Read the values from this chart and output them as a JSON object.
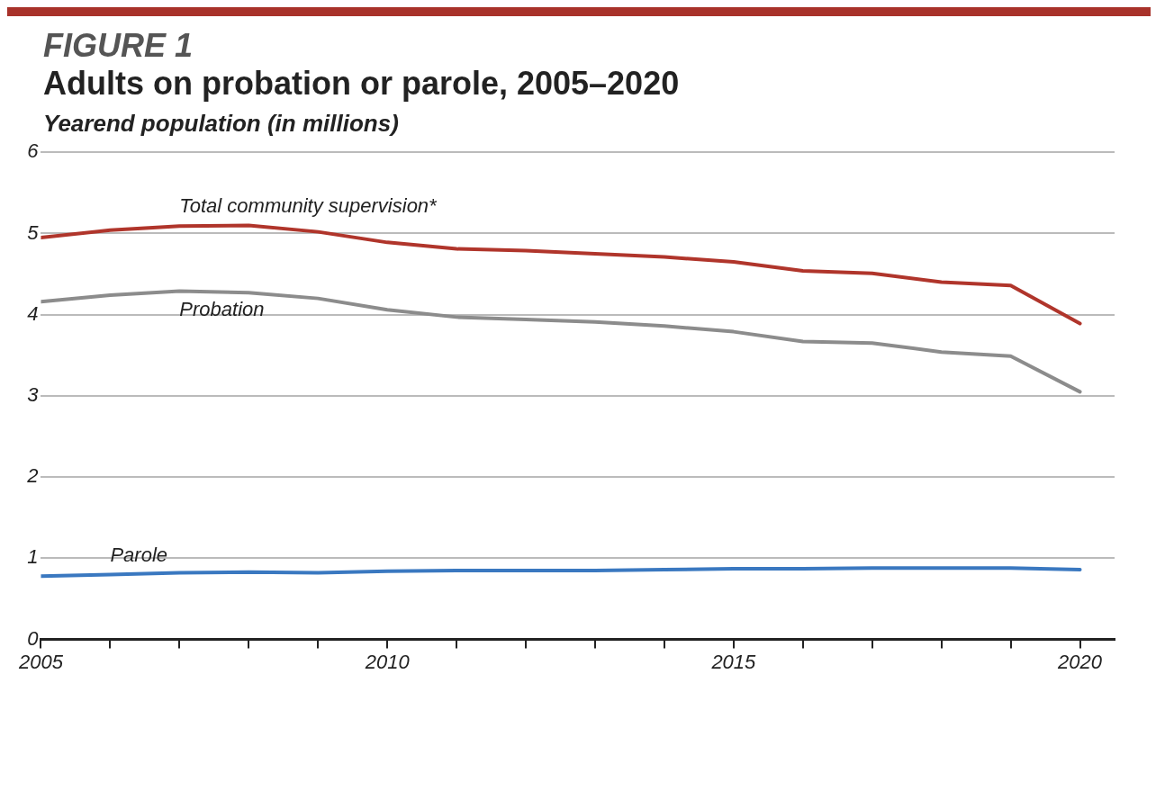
{
  "chart_data": {
    "type": "line",
    "title": "FIGURE 1",
    "subtitle": "Adults on probation or parole, 2005–2020",
    "ylabel": "Yearend population (in millions)",
    "x": [
      2005,
      2006,
      2007,
      2008,
      2009,
      2010,
      2011,
      2012,
      2013,
      2014,
      2015,
      2016,
      2017,
      2018,
      2019,
      2020
    ],
    "series": [
      {
        "name": "Total community supervision*",
        "color": "#b0352b",
        "values": [
          4.95,
          5.04,
          5.09,
          5.1,
          5.02,
          4.89,
          4.81,
          4.79,
          4.75,
          4.71,
          4.65,
          4.54,
          4.51,
          4.4,
          4.36,
          3.89
        ]
      },
      {
        "name": "Probation",
        "color": "#8c8c8c",
        "values": [
          4.16,
          4.24,
          4.29,
          4.27,
          4.2,
          4.06,
          3.97,
          3.94,
          3.91,
          3.86,
          3.79,
          3.67,
          3.65,
          3.54,
          3.49,
          3.05
        ]
      },
      {
        "name": "Parole",
        "color": "#3a78c0",
        "values": [
          0.78,
          0.8,
          0.82,
          0.83,
          0.82,
          0.84,
          0.85,
          0.85,
          0.85,
          0.86,
          0.87,
          0.87,
          0.88,
          0.88,
          0.88,
          0.86
        ]
      }
    ],
    "xlim": [
      2005,
      2020.5
    ],
    "ylim": [
      0,
      6
    ],
    "yticks": [
      0,
      1,
      2,
      3,
      4,
      5,
      6
    ],
    "xticks": [
      2005,
      {
        "value": 2006,
        "label": null
      },
      {
        "value": 2007,
        "label": null
      },
      {
        "value": 2008,
        "label": null
      },
      {
        "value": 2009,
        "label": null
      },
      2010,
      {
        "value": 2011,
        "label": null
      },
      {
        "value": 2012,
        "label": null
      },
      {
        "value": 2013,
        "label": null
      },
      {
        "value": 2014,
        "label": null
      },
      2015,
      {
        "value": 2016,
        "label": null
      },
      {
        "value": 2017,
        "label": null
      },
      {
        "value": 2018,
        "label": null
      },
      {
        "value": 2019,
        "label": null
      },
      2020
    ],
    "grid": "y",
    "legend": false,
    "marker": "none",
    "line_style": "solid"
  }
}
